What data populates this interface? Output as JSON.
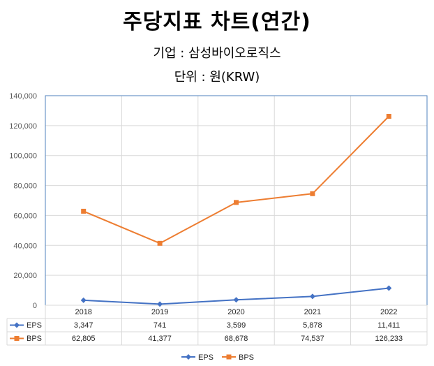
{
  "title": "주당지표 차트(연간)",
  "company_line": "기업 : 삼성바이오로직스",
  "unit_line": "단위 : 원(KRW)",
  "colors": {
    "eps": "#4472C4",
    "bps": "#ED7D31",
    "grid": "#D9D9D9",
    "axis_box": "#4F81BD"
  },
  "chart_data": {
    "type": "line",
    "title": "주당지표 차트(연간)",
    "categories": [
      "2018",
      "2019",
      "2020",
      "2021",
      "2022"
    ],
    "series": [
      {
        "name": "EPS",
        "values": [
          3347,
          741,
          3599,
          5878,
          11411
        ],
        "labels": [
          "3,347",
          "741",
          "3,599",
          "5,878",
          "11,411"
        ],
        "marker": "diamond"
      },
      {
        "name": "BPS",
        "values": [
          62805,
          41377,
          68678,
          74537,
          126233
        ],
        "labels": [
          "62,805",
          "41,377",
          "68,678",
          "74,537",
          "126,233"
        ],
        "marker": "square"
      }
    ],
    "ylim": [
      0,
      140000
    ],
    "yticks": [
      0,
      20000,
      40000,
      60000,
      80000,
      100000,
      120000,
      140000
    ],
    "ytick_labels": [
      "0",
      "20,000",
      "40,000",
      "60,000",
      "80,000",
      "100,000",
      "120,000",
      "140,000"
    ],
    "grid": true,
    "data_table": true,
    "legend_position": "bottom"
  }
}
